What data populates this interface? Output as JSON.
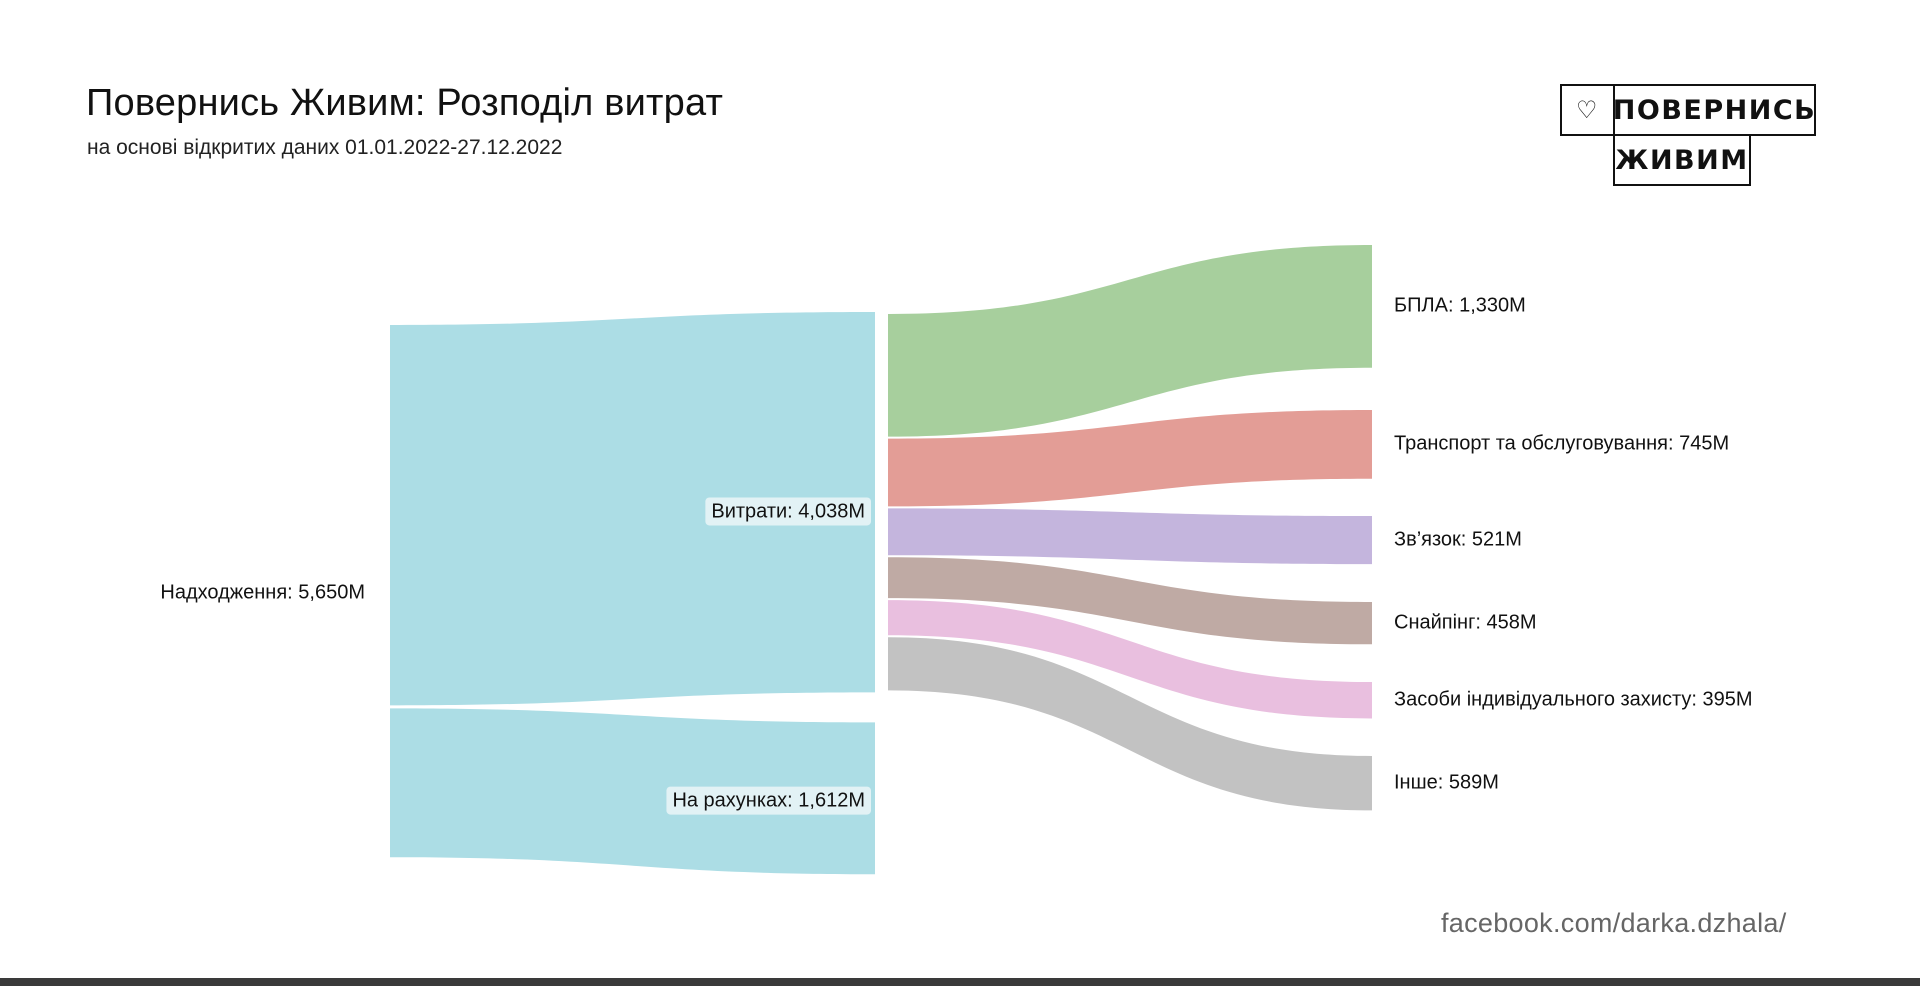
{
  "header": {
    "title": "Повернись Живим: Розподіл витрат",
    "subtitle": "на основі відкритих даних 01.01.2022-27.12.2022"
  },
  "logo": {
    "icon": "heart-icon",
    "line1": "ПОВЕРНИСЬ",
    "line2": "ЖИВИМ"
  },
  "credit": "facebook.com/darka.dzhala/",
  "chart_data": {
    "type": "sankey",
    "title": "Повернись Живим: Розподіл витрат",
    "subtitle": "на основі відкритих даних 01.01.2022-27.12.2022",
    "units": "M",
    "nodes": [
      {
        "id": "income",
        "label": "Надходження: 5,650M",
        "value": 5650,
        "color": "#acdde5"
      },
      {
        "id": "expenses",
        "label": "Витрати: 4,038M",
        "value": 4038,
        "color": "#acdde5"
      },
      {
        "id": "accounts",
        "label": "На рахунках: 1,612M",
        "value": 1612,
        "color": "#acdde5"
      },
      {
        "id": "uav",
        "label": "БПЛА: 1,330M",
        "value": 1330,
        "color": "#a7cf9d"
      },
      {
        "id": "transport",
        "label": "Транспорт та обслуговування: 745M",
        "value": 745,
        "color": "#e39d96"
      },
      {
        "id": "comms",
        "label": "Зв’язок: 521M",
        "value": 521,
        "color": "#c4b5dd"
      },
      {
        "id": "sniping",
        "label": "Снайпінг: 458M",
        "value": 458,
        "color": "#bfaaa4"
      },
      {
        "id": "ppe",
        "label": "Засоби індивідуального захисту: 395M",
        "value": 395,
        "color": "#e9bfdf"
      },
      {
        "id": "other",
        "label": "Інше: 589M",
        "value": 589,
        "color": "#c2c2c2"
      }
    ],
    "links": [
      {
        "source": "income",
        "target": "expenses",
        "value": 4038
      },
      {
        "source": "income",
        "target": "accounts",
        "value": 1612
      },
      {
        "source": "expenses",
        "target": "uav",
        "value": 1330
      },
      {
        "source": "expenses",
        "target": "transport",
        "value": 745
      },
      {
        "source": "expenses",
        "target": "comms",
        "value": 521
      },
      {
        "source": "expenses",
        "target": "sniping",
        "value": 458
      },
      {
        "source": "expenses",
        "target": "ppe",
        "value": 395
      },
      {
        "source": "expenses",
        "target": "other",
        "value": 589
      }
    ]
  }
}
